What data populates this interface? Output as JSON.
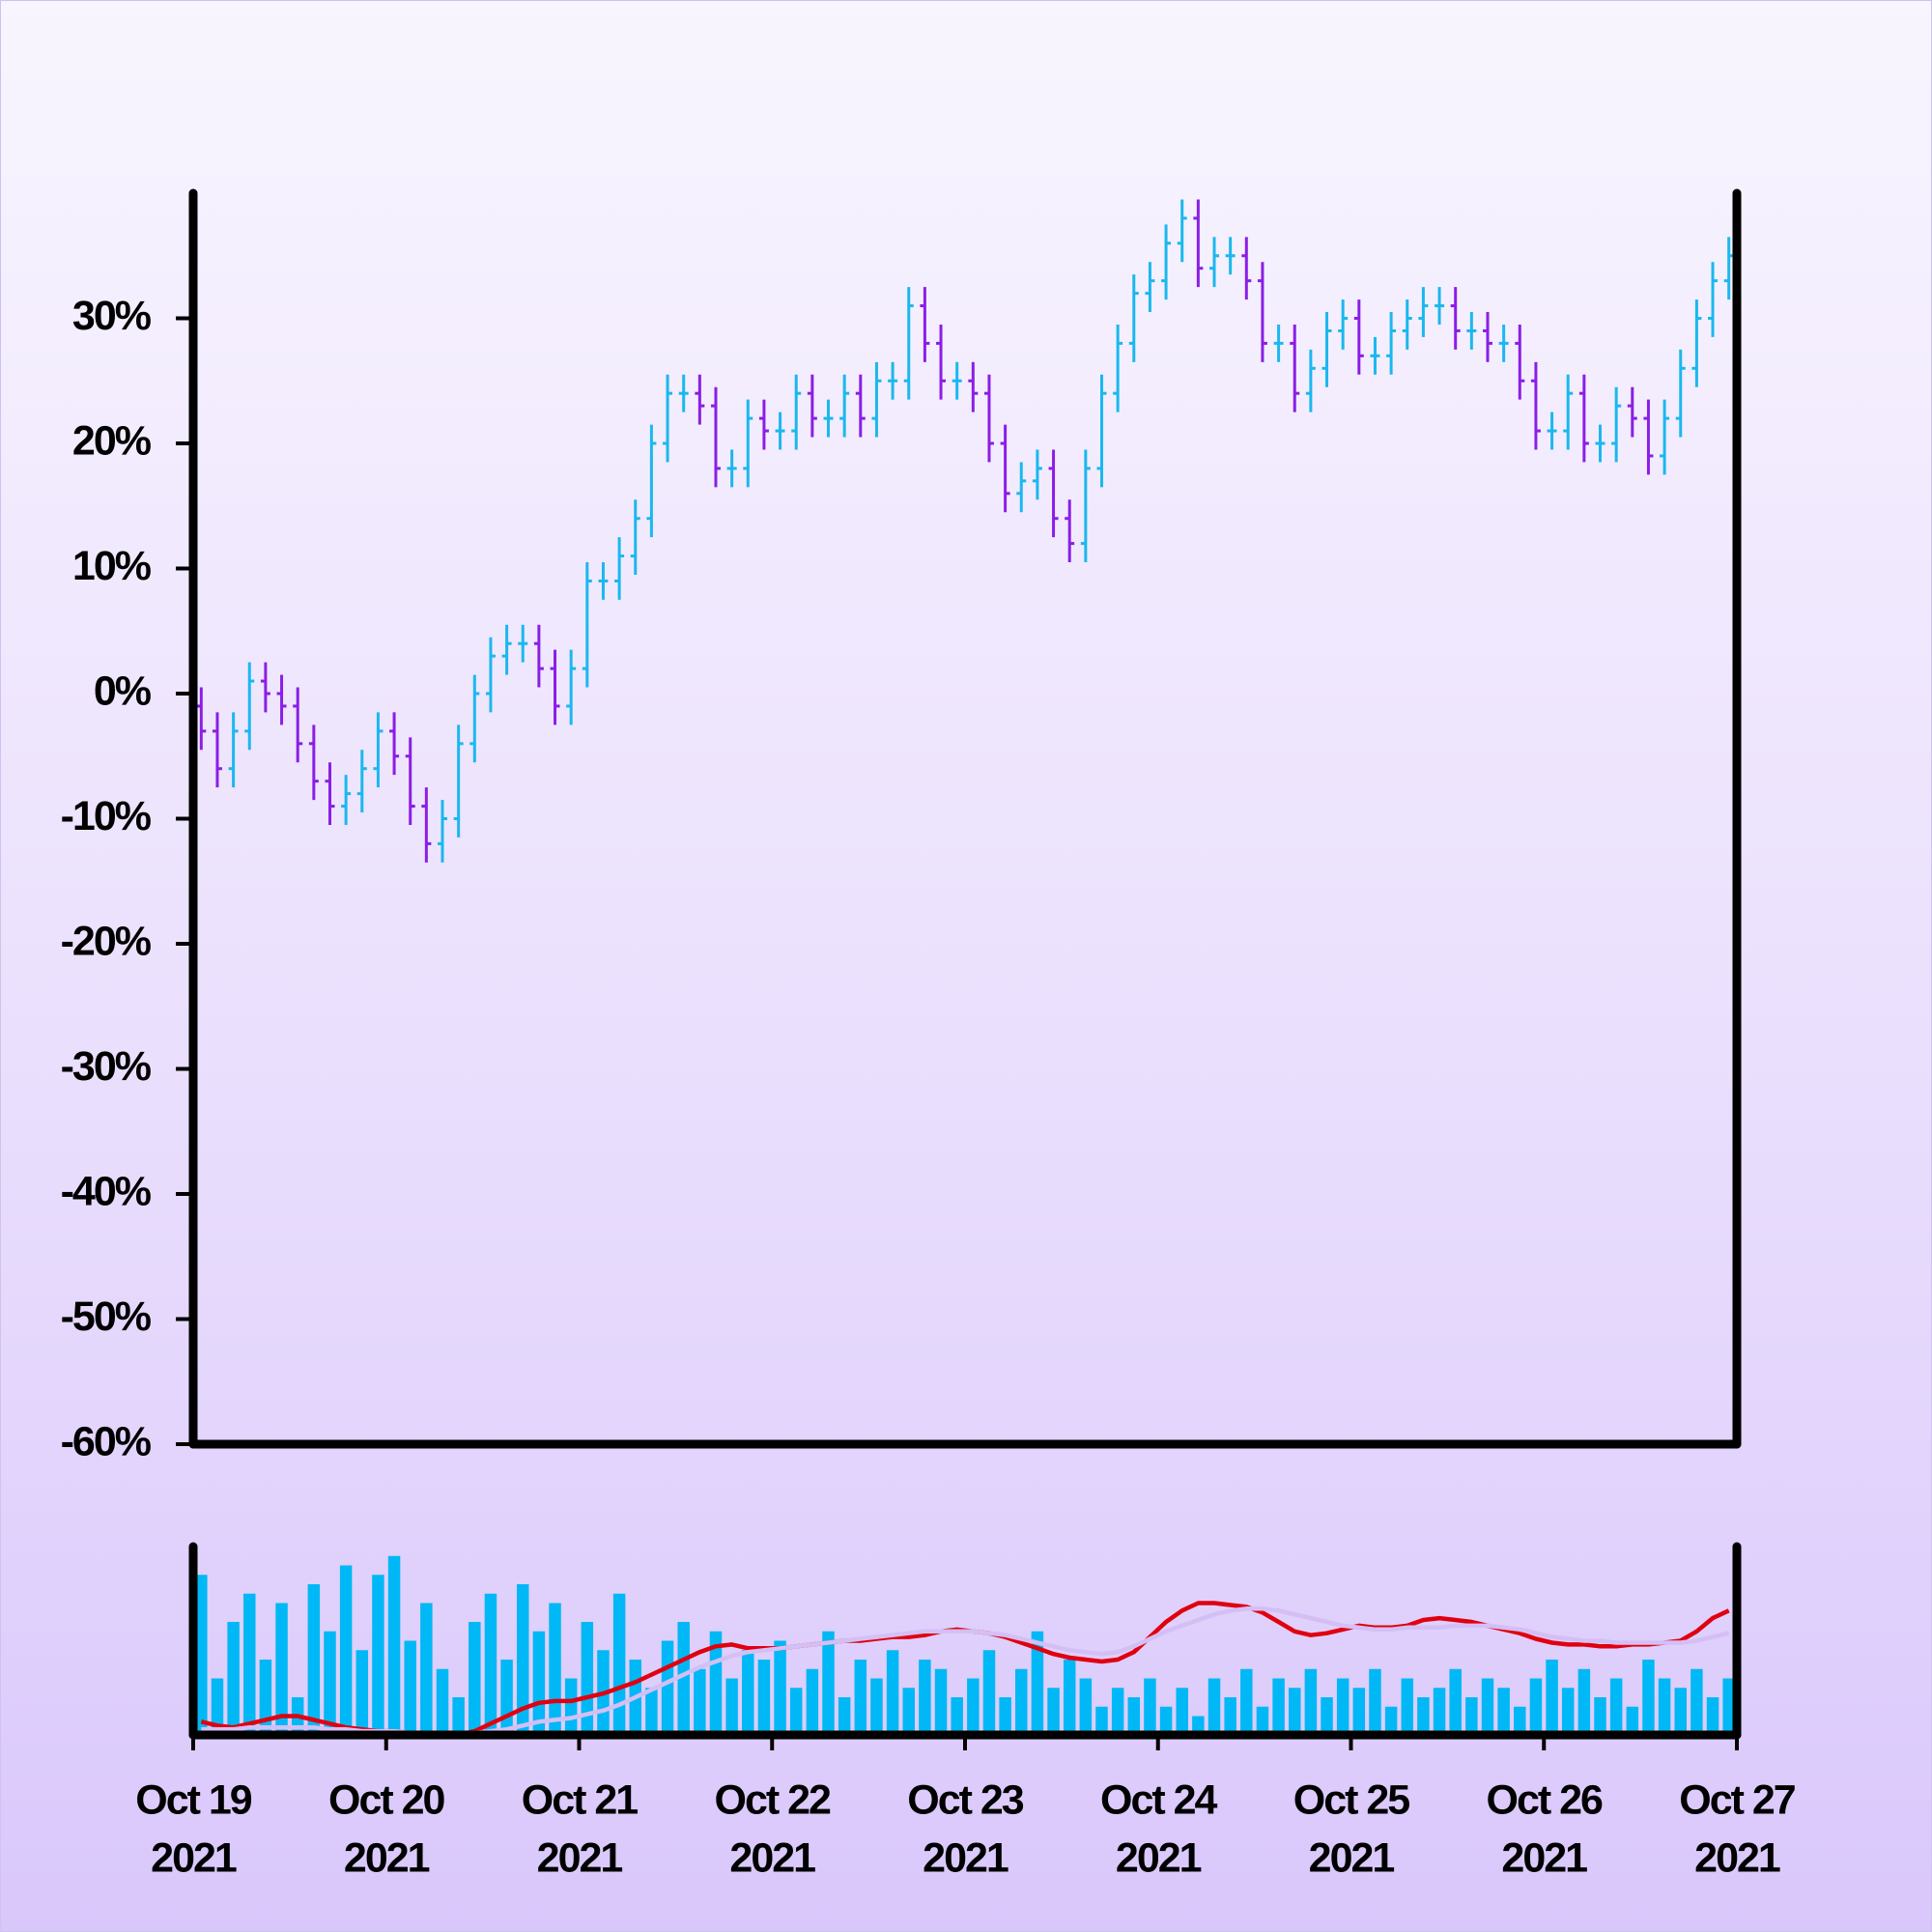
{
  "chart_data": {
    "type": "ohlc",
    "x": [
      "2021-10-19T00:00",
      "2021-10-19T02:00",
      "2021-10-19T04:00",
      "2021-10-19T06:00",
      "2021-10-19T08:00",
      "2021-10-19T10:00",
      "2021-10-19T12:00",
      "2021-10-19T14:00",
      "2021-10-19T16:00",
      "2021-10-19T18:00",
      "2021-10-19T20:00",
      "2021-10-19T22:00",
      "2021-10-20T00:00",
      "2021-10-20T02:00",
      "2021-10-20T04:00",
      "2021-10-20T06:00",
      "2021-10-20T08:00",
      "2021-10-20T10:00",
      "2021-10-20T12:00",
      "2021-10-20T14:00",
      "2021-10-20T16:00",
      "2021-10-20T18:00",
      "2021-10-20T20:00",
      "2021-10-20T22:00",
      "2021-10-21T00:00",
      "2021-10-21T02:00",
      "2021-10-21T04:00",
      "2021-10-21T06:00",
      "2021-10-21T08:00",
      "2021-10-21T10:00",
      "2021-10-21T12:00",
      "2021-10-21T14:00",
      "2021-10-21T16:00",
      "2021-10-21T18:00",
      "2021-10-21T20:00",
      "2021-10-21T22:00",
      "2021-10-22T00:00",
      "2021-10-22T02:00",
      "2021-10-22T04:00",
      "2021-10-22T06:00",
      "2021-10-22T08:00",
      "2021-10-22T10:00",
      "2021-10-22T12:00",
      "2021-10-22T14:00",
      "2021-10-22T16:00",
      "2021-10-22T18:00",
      "2021-10-22T20:00",
      "2021-10-22T22:00",
      "2021-10-23T00:00",
      "2021-10-23T02:00",
      "2021-10-23T04:00",
      "2021-10-23T06:00",
      "2021-10-23T08:00",
      "2021-10-23T10:00",
      "2021-10-23T12:00",
      "2021-10-23T14:00",
      "2021-10-23T16:00",
      "2021-10-23T18:00",
      "2021-10-23T20:00",
      "2021-10-23T22:00",
      "2021-10-24T00:00",
      "2021-10-24T02:00",
      "2021-10-24T04:00",
      "2021-10-24T06:00",
      "2021-10-24T08:00",
      "2021-10-24T10:00",
      "2021-10-24T12:00",
      "2021-10-24T14:00",
      "2021-10-24T16:00",
      "2021-10-24T18:00",
      "2021-10-24T20:00",
      "2021-10-24T22:00",
      "2021-10-25T00:00",
      "2021-10-25T02:00",
      "2021-10-25T04:00",
      "2021-10-25T06:00",
      "2021-10-25T08:00",
      "2021-10-25T10:00",
      "2021-10-25T12:00",
      "2021-10-25T14:00",
      "2021-10-25T16:00",
      "2021-10-25T18:00",
      "2021-10-25T20:00",
      "2021-10-25T22:00",
      "2021-10-26T00:00",
      "2021-10-26T02:00",
      "2021-10-26T04:00",
      "2021-10-26T06:00",
      "2021-10-26T08:00",
      "2021-10-26T10:00",
      "2021-10-26T12:00",
      "2021-10-26T14:00",
      "2021-10-26T16:00",
      "2021-10-26T18:00",
      "2021-10-26T20:00",
      "2021-10-26T22:00"
    ],
    "open": [
      -1,
      -3,
      -6,
      -3,
      1,
      0,
      -1,
      -4,
      -7,
      -9,
      -8,
      -6,
      -3,
      -5,
      -9,
      -12,
      -10,
      -4,
      0,
      3,
      4,
      4,
      2,
      -1,
      2,
      9,
      9,
      11,
      14,
      20,
      24,
      24,
      23,
      18,
      18,
      22,
      21,
      21,
      24,
      22,
      22,
      24,
      22,
      25,
      25,
      31,
      28,
      25,
      25,
      24,
      20,
      16,
      17,
      18,
      14,
      12,
      18,
      24,
      28,
      32,
      33,
      36,
      38,
      34,
      35,
      35,
      33,
      28,
      28,
      24,
      26,
      29,
      30,
      27,
      27,
      29,
      30,
      31,
      31,
      29,
      29,
      28,
      28,
      25,
      21,
      21,
      24,
      20,
      20,
      23,
      22,
      19,
      22,
      26,
      30,
      33
    ],
    "high": [
      0.5,
      -1.5,
      -1.5,
      2.5,
      2.5,
      1.5,
      0.5,
      -2.5,
      -5.5,
      -6.5,
      -4.5,
      -1.5,
      -1.5,
      -3.5,
      -7.5,
      -8.5,
      -2.5,
      1.5,
      4.5,
      5.5,
      5.5,
      5.5,
      3.5,
      3.5,
      10.5,
      10.5,
      12.5,
      15.5,
      21.5,
      25.5,
      25.5,
      25.5,
      24.5,
      19.5,
      23.5,
      23.5,
      22.5,
      25.5,
      25.5,
      23.5,
      25.5,
      25.5,
      26.5,
      26.5,
      32.5,
      32.5,
      29.5,
      26.5,
      26.5,
      25.5,
      21.5,
      18.5,
      19.5,
      19.5,
      15.5,
      19.5,
      25.5,
      29.5,
      33.5,
      34.5,
      37.5,
      39.5,
      39.5,
      36.5,
      36.5,
      36.5,
      34.5,
      29.5,
      29.5,
      27.5,
      30.5,
      31.5,
      31.5,
      28.5,
      30.5,
      31.5,
      32.5,
      32.5,
      32.5,
      30.5,
      30.5,
      29.5,
      29.5,
      26.5,
      22.5,
      25.5,
      25.5,
      21.5,
      24.5,
      24.5,
      23.5,
      23.5,
      27.5,
      31.5,
      34.5,
      36.5
    ],
    "low": [
      -4.5,
      -7.5,
      -7.5,
      -4.5,
      -1.5,
      -2.5,
      -5.5,
      -8.5,
      -10.5,
      -10.5,
      -9.5,
      -7.5,
      -6.5,
      -10.5,
      -13.5,
      -13.5,
      -11.5,
      -5.5,
      -1.5,
      1.5,
      2.5,
      0.5,
      -2.5,
      -2.5,
      0.5,
      7.5,
      7.5,
      9.5,
      12.5,
      18.5,
      22.5,
      21.5,
      16.5,
      16.5,
      16.5,
      19.5,
      19.5,
      19.5,
      20.5,
      20.5,
      20.5,
      20.5,
      20.5,
      23.5,
      23.5,
      26.5,
      23.5,
      23.5,
      22.5,
      18.5,
      14.5,
      14.5,
      15.5,
      12.5,
      10.5,
      10.5,
      16.5,
      22.5,
      26.5,
      30.5,
      31.5,
      34.5,
      32.5,
      32.5,
      33.5,
      31.5,
      26.5,
      26.5,
      22.5,
      22.5,
      24.5,
      27.5,
      25.5,
      25.5,
      25.5,
      27.5,
      28.5,
      29.5,
      27.5,
      27.5,
      26.5,
      26.5,
      23.5,
      19.5,
      19.5,
      19.5,
      18.5,
      18.5,
      18.5,
      20.5,
      17.5,
      17.5,
      20.5,
      24.5,
      28.5,
      31.5
    ],
    "close": [
      -3,
      -6,
      -3,
      1,
      0,
      -1,
      -4,
      -7,
      -9,
      -8,
      -6,
      -3,
      -5,
      -9,
      -12,
      -10,
      -4,
      0,
      3,
      4,
      4,
      2,
      -1,
      2,
      9,
      9,
      11,
      14,
      20,
      24,
      24,
      23,
      18,
      18,
      22,
      21,
      21,
      24,
      22,
      22,
      24,
      22,
      25,
      25,
      31,
      28,
      25,
      25,
      24,
      20,
      16,
      17,
      18,
      14,
      12,
      18,
      24,
      28,
      32,
      33,
      36,
      38,
      34,
      35,
      35,
      33,
      28,
      28,
      24,
      26,
      29,
      30,
      27,
      27,
      29,
      30,
      31,
      31,
      29,
      29,
      28,
      28,
      25,
      21,
      21,
      24,
      20,
      20,
      23,
      22,
      19,
      22,
      26,
      30,
      33,
      35
    ],
    "up_color": "#1ab8ee",
    "down_color": "#8b1ee6",
    "xlim": [
      "2021-10-19T00:00",
      "2021-10-27T00:00"
    ],
    "xticks": [
      {
        "value": "2021-10-19T00:00",
        "label": [
          "Oct 19",
          "2021"
        ]
      },
      {
        "value": "2021-10-20T00:00",
        "label": [
          "Oct 20",
          "2021"
        ]
      },
      {
        "value": "2021-10-21T00:00",
        "label": [
          "Oct 21",
          "2021"
        ]
      },
      {
        "value": "2021-10-22T00:00",
        "label": [
          "Oct 22",
          "2021"
        ]
      },
      {
        "value": "2021-10-23T00:00",
        "label": [
          "Oct 23",
          "2021"
        ]
      },
      {
        "value": "2021-10-24T00:00",
        "label": [
          "Oct 24",
          "2021"
        ]
      },
      {
        "value": "2021-10-25T00:00",
        "label": [
          "Oct 25",
          "2021"
        ]
      },
      {
        "value": "2021-10-26T00:00",
        "label": [
          "Oct 26",
          "2021"
        ]
      },
      {
        "value": "2021-10-27T00:00",
        "label": [
          "Oct 27",
          "2021"
        ]
      }
    ],
    "ylim": [
      -60,
      40
    ],
    "yticks": [
      {
        "value": -60,
        "label": "-60%"
      },
      {
        "value": -50,
        "label": "-50%"
      },
      {
        "value": -40,
        "label": "-40%"
      },
      {
        "value": -30,
        "label": "-30%"
      },
      {
        "value": -20,
        "label": "-20%"
      },
      {
        "value": -10,
        "label": "-10%"
      },
      {
        "value": 0,
        "label": "0%"
      },
      {
        "value": 10,
        "label": "10%"
      },
      {
        "value": 20,
        "label": "20%"
      },
      {
        "value": 30,
        "label": "30%"
      }
    ],
    "volume": {
      "color": "#00b8f5",
      "ylim": [
        0,
        100
      ],
      "values": [
        85,
        30,
        60,
        75,
        40,
        70,
        20,
        80,
        55,
        90,
        45,
        85,
        95,
        50,
        70,
        35,
        20,
        60,
        75,
        40,
        80,
        55,
        70,
        30,
        60,
        45,
        75,
        40,
        25,
        50,
        60,
        35,
        55,
        30,
        45,
        40,
        50,
        25,
        35,
        55,
        20,
        40,
        30,
        45,
        25,
        40,
        35,
        20,
        30,
        45,
        20,
        35,
        55,
        25,
        40,
        30,
        15,
        25,
        20,
        30,
        15,
        25,
        10,
        30,
        20,
        35,
        15,
        30,
        25,
        35,
        20,
        30,
        25,
        35,
        15,
        30,
        20,
        25,
        35,
        20,
        30,
        25,
        15,
        30,
        40,
        25,
        35,
        20,
        30,
        15,
        40,
        30,
        25,
        35,
        20,
        30
      ]
    },
    "overlays": [
      {
        "color": "#e0000f",
        "values": [
          7,
          5,
          4,
          6,
          8,
          10,
          10,
          8,
          6,
          4,
          3,
          2,
          2,
          1,
          0,
          0,
          0,
          2,
          6,
          10,
          14,
          17,
          18,
          18,
          20,
          22,
          25,
          28,
          32,
          36,
          40,
          44,
          47,
          48,
          46,
          46,
          46,
          47,
          48,
          49,
          50,
          50,
          51,
          52,
          52,
          53,
          55,
          56,
          55,
          54,
          52,
          49,
          46,
          43,
          41,
          40,
          39,
          40,
          44,
          52,
          60,
          66,
          70,
          70,
          69,
          68,
          65,
          60,
          55,
          53,
          54,
          56,
          58,
          57,
          57,
          58,
          61,
          62,
          61,
          60,
          58,
          56,
          54,
          51,
          49,
          48,
          48,
          47,
          47,
          48,
          48,
          49,
          50,
          55,
          62,
          66
        ]
      },
      {
        "color": "#d4bff5",
        "values": [
          3,
          3,
          3,
          4,
          4,
          4,
          4,
          4,
          3,
          3,
          2,
          2,
          2,
          1,
          1,
          1,
          1,
          1,
          2,
          3,
          5,
          7,
          8,
          9,
          11,
          13,
          16,
          20,
          24,
          28,
          32,
          36,
          39,
          42,
          44,
          45,
          46,
          47,
          48,
          49,
          50,
          51,
          52,
          53,
          54,
          55,
          55,
          55,
          55,
          54,
          53,
          51,
          49,
          47,
          45,
          44,
          43,
          44,
          47,
          51,
          55,
          58,
          61,
          64,
          66,
          67,
          67,
          66,
          64,
          62,
          60,
          58,
          57,
          56,
          56,
          57,
          57,
          57,
          58,
          58,
          58,
          57,
          56,
          54,
          52,
          51,
          50,
          50,
          49,
          49,
          49,
          49,
          49,
          50,
          52,
          54
        ]
      }
    ]
  }
}
